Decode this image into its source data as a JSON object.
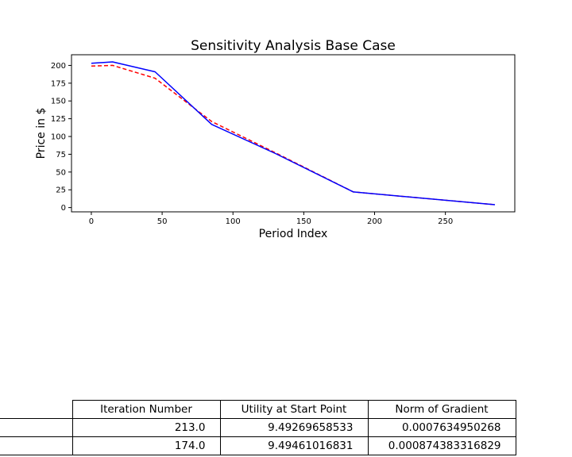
{
  "chart_data": {
    "type": "line",
    "title": "Sensitivity Analysis Base Case",
    "xlabel": "Period Index",
    "ylabel": "Price in $",
    "xlim": [
      -14,
      299
    ],
    "ylim": [
      -6,
      215
    ],
    "xticks": [
      0,
      50,
      100,
      150,
      200,
      250
    ],
    "yticks": [
      0,
      25,
      50,
      75,
      100,
      125,
      150,
      175,
      200
    ],
    "grid": false,
    "series": [
      {
        "color": "#ff0000",
        "linestyle": "dashed",
        "x": [
          0,
          15,
          45,
          85,
          130,
          185,
          285
        ],
        "y": [
          199,
          200,
          182,
          121,
          77,
          22,
          4
        ]
      },
      {
        "color": "#0000ff",
        "linestyle": "solid",
        "x": [
          0,
          15,
          45,
          85,
          130,
          185,
          285
        ],
        "y": [
          203,
          205,
          191,
          117,
          76,
          22,
          4
        ]
      }
    ]
  },
  "table": {
    "columns": [
      "Iteration Number",
      "Utility at Start Point",
      "Norm of Gradient"
    ],
    "rows": [
      {
        "label": "",
        "values": [
          "213.0",
          "9.49269658533",
          "0.0007634950268"
        ]
      },
      {
        "label": "",
        "values": [
          "174.0",
          "9.49461016831",
          "0.000874383316829"
        ]
      }
    ]
  }
}
